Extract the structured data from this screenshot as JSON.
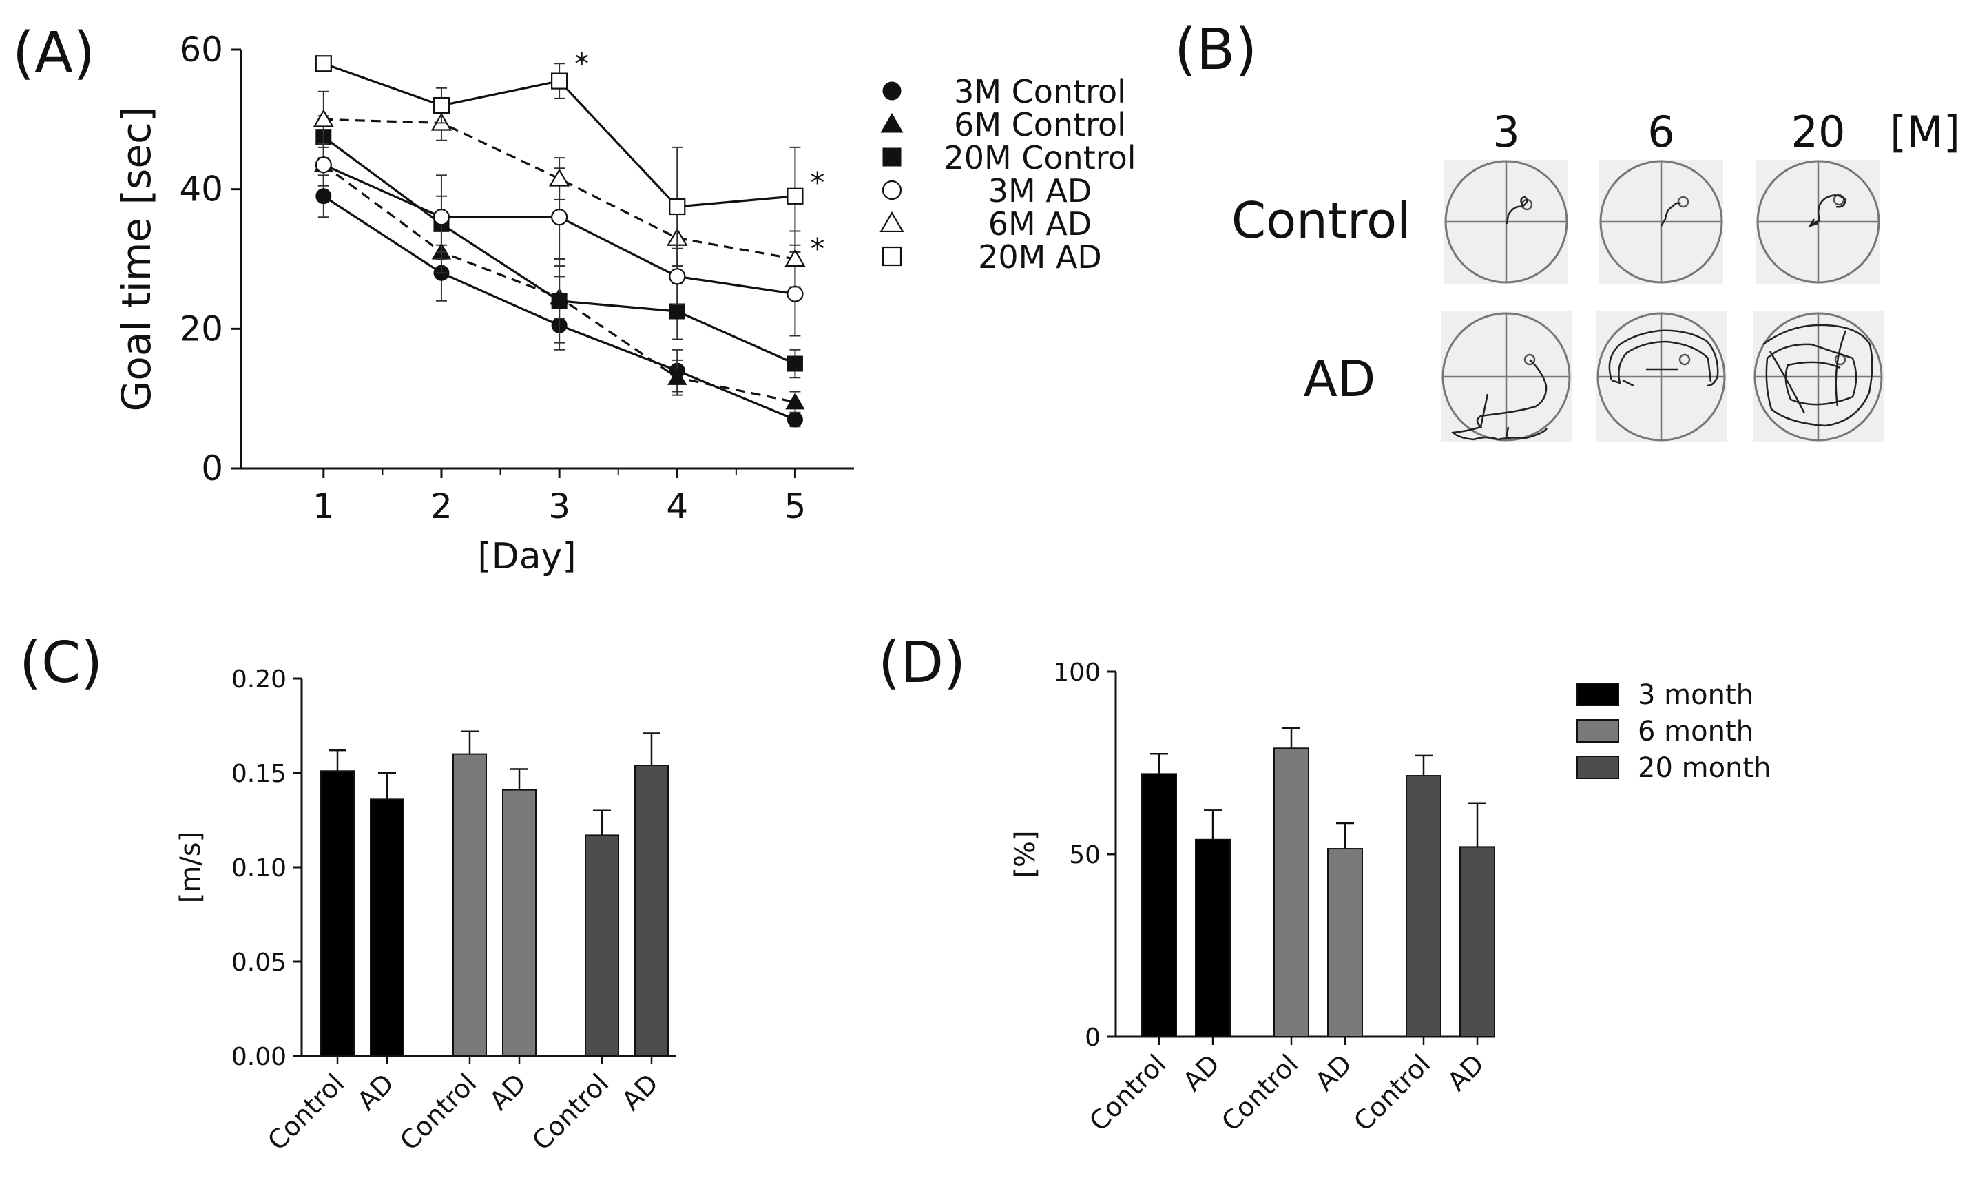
{
  "panels": {
    "a": "(A)",
    "b": "(B)",
    "c": "(C)",
    "d": "(D)"
  },
  "colors": {
    "black": "#000000",
    "mid_gray": "#7a7a7a",
    "dark_gray": "#4d4d4d",
    "arena_bg": "#efefef"
  },
  "chart_data": [
    {
      "id": "A",
      "type": "line",
      "title": "",
      "xlabel": "[Day]",
      "ylabel": "Goal time [sec]",
      "x": [
        1,
        2,
        3,
        4,
        5
      ],
      "xlim": [
        0.3,
        5.5
      ],
      "ylim": [
        0,
        60
      ],
      "yticks": [
        0,
        20,
        40,
        60
      ],
      "grid": false,
      "legend_position": "right",
      "series": [
        {
          "name": "3M Control",
          "marker": "circle",
          "filled": true,
          "dashed": false,
          "values": [
            39,
            28,
            20.5,
            14,
            7
          ],
          "errors": [
            3,
            4,
            3.5,
            3,
            1
          ]
        },
        {
          "name": "6M Control",
          "marker": "triangle",
          "filled": true,
          "dashed": true,
          "values": [
            43.5,
            31,
            24.5,
            13,
            9.5
          ],
          "errors": [
            3,
            3,
            3,
            2.5,
            1.5
          ]
        },
        {
          "name": "20M Control",
          "marker": "square",
          "filled": true,
          "dashed": false,
          "values": [
            47.5,
            35,
            24,
            22.5,
            15
          ],
          "errors": [
            3,
            4,
            6,
            4,
            2
          ]
        },
        {
          "name": "3M AD",
          "marker": "circle",
          "filled": false,
          "dashed": false,
          "values": [
            43.5,
            36,
            36,
            27.5,
            25
          ],
          "errors": [
            3,
            6,
            7,
            4,
            6
          ]
        },
        {
          "name": "6M AD",
          "marker": "triangle",
          "filled": false,
          "dashed": true,
          "values": [
            50,
            49.5,
            41.5,
            33,
            30
          ],
          "errors": [
            4,
            2.5,
            3,
            4,
            4
          ]
        },
        {
          "name": "20M AD",
          "marker": "square",
          "filled": false,
          "dashed": false,
          "values": [
            58,
            52,
            55.5,
            37.5,
            39
          ],
          "errors": [
            1,
            2.5,
            2.5,
            8.5,
            7
          ]
        }
      ],
      "annotations": [
        {
          "text": "*",
          "x": 3,
          "y": 58.5
        },
        {
          "text": "*",
          "x": 5,
          "y": 41.5
        },
        {
          "text": "*",
          "x": 5,
          "y": 32
        }
      ]
    },
    {
      "id": "C",
      "type": "bar",
      "title": "",
      "xlabel": "",
      "ylabel": "[m/s]",
      "categories": [
        "Control",
        "AD",
        "Control",
        "AD",
        "Control",
        "AD"
      ],
      "groups": [
        "3 month",
        "3 month",
        "6 month",
        "6 month",
        "20 month",
        "20 month"
      ],
      "values": [
        0.151,
        0.136,
        0.16,
        0.141,
        0.117,
        0.154
      ],
      "errors": [
        0.011,
        0.014,
        0.012,
        0.011,
        0.013,
        0.017
      ],
      "ylim": [
        0,
        0.2
      ],
      "yticks": [
        "0.00",
        "0.05",
        "0.10",
        "0.15",
        "0.20"
      ],
      "grid": false
    },
    {
      "id": "D",
      "type": "bar",
      "title": "",
      "xlabel": "",
      "ylabel": "[%]",
      "categories": [
        "Control",
        "AD",
        "Control",
        "AD",
        "Control",
        "AD"
      ],
      "groups": [
        "3 month",
        "3 month",
        "6 month",
        "6 month",
        "20 month",
        "20 month"
      ],
      "values": [
        72,
        54,
        79,
        51.5,
        71.5,
        52
      ],
      "errors": [
        5.5,
        8,
        5.5,
        7,
        5.5,
        12
      ],
      "ylim": [
        0,
        100
      ],
      "yticks": [
        "0",
        "50",
        "100"
      ],
      "grid": false,
      "legend": [
        "3 month",
        "6 month",
        "20 month"
      ],
      "legend_position": "right"
    }
  ],
  "panel_b": {
    "column_labels": [
      "3",
      "6",
      "20"
    ],
    "unit_label": "[M]",
    "row_labels": [
      "Control",
      "AD"
    ]
  }
}
